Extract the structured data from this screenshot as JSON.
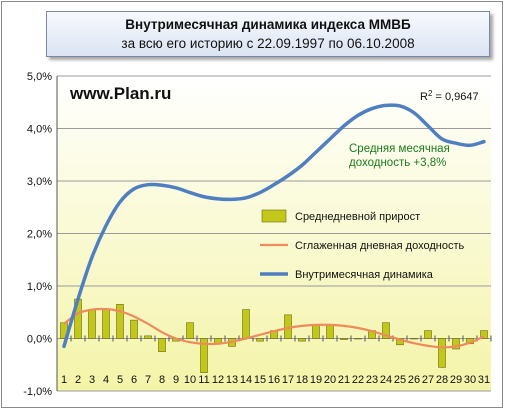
{
  "header": {
    "title": "Внутримесячная динамика индекса ММВБ",
    "subtitle": "за всю его историю с  22.09.1997 по 06.10.2008"
  },
  "watermark": "www.Plan.ru",
  "r2": {
    "prefix": "R",
    "exp": "2",
    "value": " = 0,9647"
  },
  "note": {
    "line1": "Средняя месячная",
    "line2": "доходность +3,8%"
  },
  "colors": {
    "bars": "#c2c81a",
    "smoothed": "#f08a5a",
    "cumulative": "#4f7fc0",
    "plot_top": "#ffffff",
    "plot_bottom": "#f4f4a8"
  },
  "chart_data": {
    "type": "bar",
    "categories": [
      "1",
      "2",
      "3",
      "4",
      "5",
      "6",
      "7",
      "8",
      "9",
      "10",
      "11",
      "12",
      "13",
      "14",
      "15",
      "16",
      "17",
      "18",
      "19",
      "20",
      "21",
      "22",
      "23",
      "24",
      "25",
      "26",
      "27",
      "28",
      "29",
      "30",
      "31"
    ],
    "ylim": [
      -1.0,
      5.0
    ],
    "yticks": [
      -1,
      0,
      1,
      2,
      3,
      4,
      5
    ],
    "ytick_labels": [
      "-1,0%",
      "0,0%",
      "1,0%",
      "2,0%",
      "3,0%",
      "4,0%",
      "5,0%"
    ],
    "grid": true,
    "legend": "right",
    "series": [
      {
        "name": "Среднедневной прирост",
        "type": "bar",
        "values": [
          0.3,
          0.75,
          0.55,
          0.55,
          0.65,
          0.35,
          0.05,
          -0.25,
          -0.05,
          0.3,
          -0.65,
          -0.1,
          -0.15,
          0.55,
          -0.05,
          0.15,
          0.45,
          -0.05,
          0.25,
          0.25,
          -0.02,
          0.0,
          0.15,
          0.3,
          -0.12,
          0.0,
          0.15,
          -0.55,
          -0.2,
          -0.1,
          0.15
        ]
      },
      {
        "name": "Сглаженная дневная доходность",
        "type": "line",
        "values": [
          0.28,
          0.48,
          0.55,
          0.56,
          0.52,
          0.42,
          0.28,
          0.12,
          0.0,
          -0.07,
          -0.1,
          -0.1,
          -0.06,
          0.0,
          0.07,
          0.14,
          0.2,
          0.24,
          0.26,
          0.26,
          0.24,
          0.2,
          0.14,
          0.06,
          -0.02,
          -0.09,
          -0.14,
          -0.17,
          -0.15,
          -0.08,
          0.04
        ]
      },
      {
        "name": "Внутримесячная динамика",
        "type": "line",
        "values": [
          -0.15,
          0.75,
          1.55,
          2.15,
          2.6,
          2.85,
          2.93,
          2.92,
          2.87,
          2.78,
          2.7,
          2.66,
          2.65,
          2.68,
          2.78,
          2.93,
          3.1,
          3.3,
          3.55,
          3.8,
          4.05,
          4.25,
          4.38,
          4.44,
          4.43,
          4.3,
          4.05,
          3.8,
          3.72,
          3.68,
          3.75
        ]
      }
    ]
  }
}
